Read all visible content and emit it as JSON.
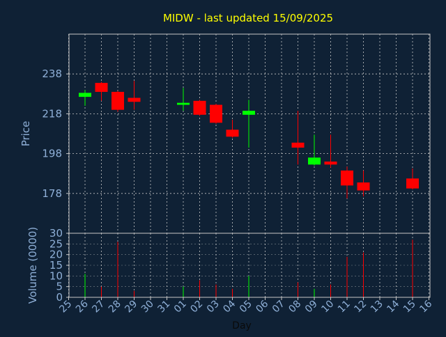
{
  "chart_data": {
    "type": "candlestick",
    "title": "MIDW - last updated 15/09/2025",
    "colors": {
      "background": "#0f2135",
      "title": "#ffff00",
      "axis_text": "#8fb0d8",
      "tick_text": "#8fb0d8",
      "grid": "#c8c8c8",
      "up": "#00ff00",
      "down": "#ff0000",
      "frame": "#c8c8c8"
    },
    "price_panel": {
      "ylabel": "Price",
      "ylim": [
        158,
        258
      ],
      "yticks": [
        178,
        198,
        218,
        238
      ],
      "grid": true
    },
    "volume_panel": {
      "ylabel": "Volume (0000)",
      "ylim": [
        0,
        30
      ],
      "yticks": [
        0,
        5,
        10,
        15,
        20,
        25,
        30
      ],
      "grid": true
    },
    "xlabel": "Day",
    "x_tick_labels": [
      "25",
      "26",
      "27",
      "28",
      "29",
      "30",
      "31",
      "01",
      "02",
      "03",
      "04",
      "05",
      "06",
      "07",
      "08",
      "09",
      "10",
      "11",
      "12",
      "13",
      "14",
      "15",
      "16"
    ],
    "candles": [
      {
        "day": "26",
        "open": 226.5,
        "close": 228.5,
        "high": 230.0,
        "low": 222.0,
        "volume": 11
      },
      {
        "day": "27",
        "open": 233.5,
        "close": 229.0,
        "high": 234.0,
        "low": 224.5,
        "volume": 5
      },
      {
        "day": "28",
        "open": 229.0,
        "close": 220.0,
        "high": 229.5,
        "low": 219.0,
        "volume": 26
      },
      {
        "day": "29",
        "open": 226.0,
        "close": 224.0,
        "high": 234.5,
        "low": 220.0,
        "volume": 3
      },
      {
        "day": "01",
        "open": 222.5,
        "close": 223.5,
        "high": 231.0,
        "low": 219.5,
        "volume": 5
      },
      {
        "day": "02",
        "open": 224.5,
        "close": 217.5,
        "high": 225.0,
        "low": 217.0,
        "volume": 8
      },
      {
        "day": "03",
        "open": 222.5,
        "close": 213.5,
        "high": 223.0,
        "low": 213.0,
        "volume": 6
      },
      {
        "day": "04",
        "open": 210.0,
        "close": 206.5,
        "high": 215.0,
        "low": 206.0,
        "volume": 4
      },
      {
        "day": "05",
        "open": 217.5,
        "close": 219.5,
        "high": 225.0,
        "low": 201.0,
        "volume": 10
      },
      {
        "day": "08",
        "open": 203.5,
        "close": 201.0,
        "high": 219.5,
        "low": 192.5,
        "volume": 7
      },
      {
        "day": "09",
        "open": 192.5,
        "close": 196.0,
        "high": 207.5,
        "low": 192.0,
        "volume": 4
      },
      {
        "day": "10",
        "open": 194.0,
        "close": 192.5,
        "high": 207.5,
        "low": 191.0,
        "volume": 6
      },
      {
        "day": "11",
        "open": 189.5,
        "close": 182.0,
        "high": 191.5,
        "low": 175.5,
        "volume": 19
      },
      {
        "day": "12",
        "open": 183.5,
        "close": 179.5,
        "high": 189.5,
        "low": 176.5,
        "volume": 21
      },
      {
        "day": "15",
        "open": 185.5,
        "close": 180.5,
        "high": 190.5,
        "low": 180.0,
        "volume": 27
      }
    ]
  }
}
